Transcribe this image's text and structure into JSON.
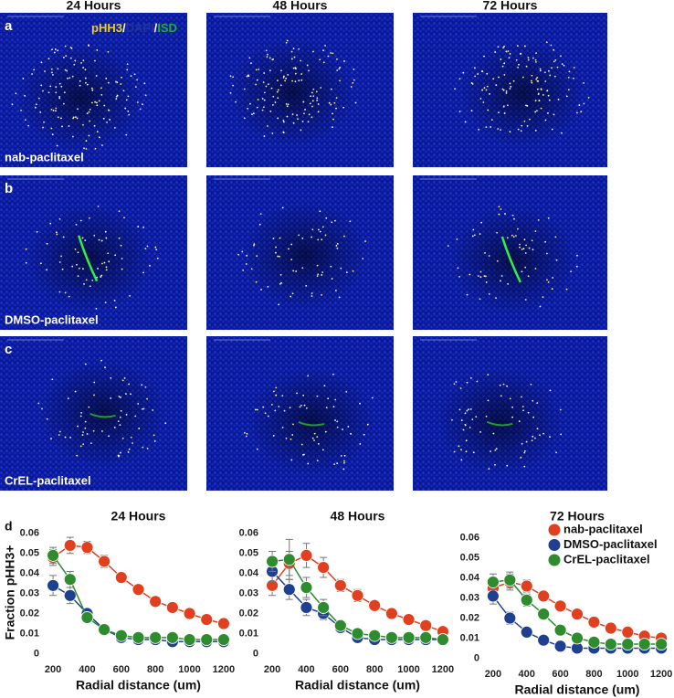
{
  "figure": {
    "columns": [
      "24 Hours",
      "48 Hours",
      "72 Hours"
    ],
    "rows": [
      {
        "label": "a",
        "caption": "nab-paclitaxel"
      },
      {
        "label": "b",
        "caption": "DMSO-paclitaxel"
      },
      {
        "label": "c",
        "caption": "CrEL-paclitaxel"
      }
    ],
    "stain": [
      {
        "text": "pHH3",
        "color": "#e6cf2a"
      },
      {
        "text": "/",
        "color": "#ffffff"
      },
      {
        "text": "DAPI",
        "color": "#2233a0"
      },
      {
        "text": "/",
        "color": "#ffffff"
      },
      {
        "text": "ISD",
        "color": "#22aa33"
      }
    ],
    "panel_d": "d"
  },
  "chart_data": [
    {
      "type": "line",
      "title": "24 Hours",
      "xlabel": "Radial distance (um)",
      "ylabel": "Fraction pHH3+",
      "x": [
        200,
        300,
        400,
        500,
        600,
        700,
        800,
        900,
        1000,
        1100,
        1200
      ],
      "xlim": [
        130,
        1270
      ],
      "ylim": [
        -0.003,
        0.064
      ],
      "xticks": [
        200,
        400,
        600,
        800,
        1000,
        1200
      ],
      "yticks": [
        0,
        0.01,
        0.02,
        0.03,
        0.04,
        0.05,
        0.06
      ],
      "series": [
        {
          "color": "#e0401f",
          "values": [
            0.048,
            0.054,
            0.053,
            0.046,
            0.038,
            0.032,
            0.026,
            0.023,
            0.02,
            0.017,
            0.015
          ],
          "errors": [
            0.004,
            0.004,
            0.003,
            0.003,
            0.002,
            0.002,
            0.002,
            0.002,
            0.002,
            0.002,
            0.001
          ]
        },
        {
          "color": "#1f3f8f",
          "values": [
            0.034,
            0.029,
            0.02,
            0.012,
            0.008,
            0.007,
            0.007,
            0.006,
            0.006,
            0.006,
            0.006
          ],
          "errors": [
            0.005,
            0.004,
            0.002,
            0.002,
            0.001,
            0.001,
            0.001,
            0.001,
            0.001,
            0.001,
            0.001
          ]
        },
        {
          "color": "#2e8b2e",
          "values": [
            0.049,
            0.037,
            0.018,
            0.012,
            0.009,
            0.008,
            0.008,
            0.008,
            0.007,
            0.007,
            0.007
          ],
          "errors": [
            0.004,
            0.004,
            0.002,
            0.002,
            0.001,
            0.001,
            0.001,
            0.001,
            0.001,
            0.001,
            0.001
          ]
        }
      ]
    },
    {
      "type": "line",
      "title": "48 Hours",
      "xlabel": "Radial distance (um)",
      "x": [
        200,
        300,
        400,
        500,
        600,
        700,
        800,
        900,
        1000,
        1100,
        1200
      ],
      "xlim": [
        130,
        1270
      ],
      "ylim": [
        -0.003,
        0.064
      ],
      "xticks": [
        200,
        400,
        600,
        800,
        1000,
        1200
      ],
      "yticks": [
        0,
        0.01,
        0.02,
        0.03,
        0.04,
        0.05,
        0.06
      ],
      "series": [
        {
          "color": "#e0401f",
          "values": [
            0.034,
            0.045,
            0.049,
            0.043,
            0.034,
            0.029,
            0.024,
            0.02,
            0.017,
            0.014,
            0.011
          ],
          "errors": [
            0.005,
            0.006,
            0.006,
            0.005,
            0.003,
            0.003,
            0.002,
            0.002,
            0.002,
            0.002,
            0.001
          ]
        },
        {
          "color": "#1f3f8f",
          "values": [
            0.041,
            0.032,
            0.023,
            0.02,
            0.013,
            0.008,
            0.007,
            0.007,
            0.007,
            0.007,
            0.007
          ],
          "errors": [
            0.005,
            0.005,
            0.004,
            0.003,
            0.002,
            0.001,
            0.001,
            0.001,
            0.001,
            0.001,
            0.001
          ]
        },
        {
          "color": "#2e8b2e",
          "values": [
            0.046,
            0.047,
            0.033,
            0.023,
            0.014,
            0.01,
            0.009,
            0.008,
            0.008,
            0.008,
            0.007
          ],
          "errors": [
            0.005,
            0.01,
            0.005,
            0.004,
            0.002,
            0.001,
            0.001,
            0.001,
            0.001,
            0.001,
            0.001
          ]
        }
      ]
    },
    {
      "type": "line",
      "title": "72 Hours",
      "xlabel": "Radial distance (um)",
      "x": [
        200,
        300,
        400,
        500,
        600,
        700,
        800,
        900,
        1000,
        1100,
        1200
      ],
      "xlim": [
        130,
        1270
      ],
      "ylim": [
        -0.003,
        0.064
      ],
      "xticks": [
        200,
        400,
        600,
        800,
        1000,
        1200
      ],
      "yticks": [
        0,
        0.01,
        0.02,
        0.03,
        0.04,
        0.05,
        0.06
      ],
      "legend": "upper right",
      "series": [
        {
          "name": "nab-paclitaxel",
          "color": "#e0401f",
          "values": [
            0.035,
            0.038,
            0.036,
            0.031,
            0.026,
            0.022,
            0.018,
            0.015,
            0.013,
            0.011,
            0.01
          ],
          "errors": [
            0.004,
            0.004,
            0.003,
            0.002,
            0.002,
            0.002,
            0.001,
            0.001,
            0.001,
            0.001,
            0.001
          ]
        },
        {
          "name": "DMSO-paclitaxel",
          "color": "#1f3f8f",
          "values": [
            0.031,
            0.02,
            0.013,
            0.009,
            0.006,
            0.005,
            0.005,
            0.005,
            0.005,
            0.005,
            0.005
          ],
          "errors": [
            0.004,
            0.003,
            0.002,
            0.001,
            0.001,
            0.001,
            0.001,
            0.001,
            0.001,
            0.001,
            0.001
          ]
        },
        {
          "name": "CrEL-paclitaxel",
          "color": "#2e8b2e",
          "values": [
            0.038,
            0.039,
            0.029,
            0.022,
            0.014,
            0.01,
            0.008,
            0.007,
            0.007,
            0.007,
            0.007
          ],
          "errors": [
            0.004,
            0.004,
            0.003,
            0.002,
            0.002,
            0.001,
            0.001,
            0.001,
            0.001,
            0.001,
            0.001
          ]
        }
      ]
    }
  ]
}
